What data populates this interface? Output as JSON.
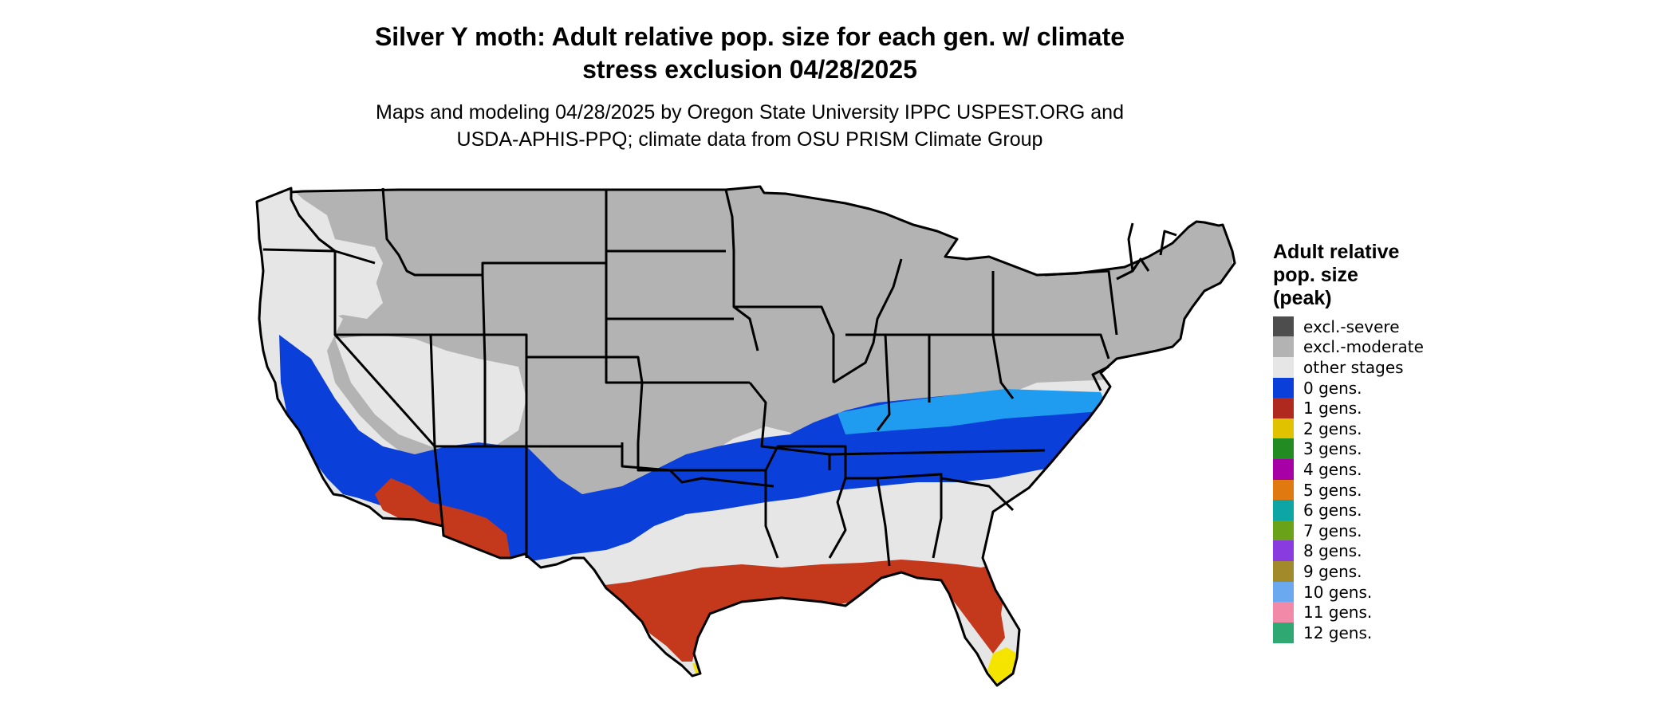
{
  "title": {
    "line1": "Silver Y moth: Adult relative pop. size for each gen. w/ climate",
    "line2": "stress exclusion 04/28/2025"
  },
  "subtitle": {
    "line1": "Maps and modeling 04/28/2025 by Oregon State University IPPC USPEST.ORG and",
    "line2": "USDA-APHIS-PPQ; climate data from OSU PRISM Climate Group"
  },
  "map": {
    "region": "Contiguous United States",
    "colors": {
      "excluded_moderate": "#b3b3b3",
      "other_stages": "#e6e6e6",
      "gen0": "#0a3fd9",
      "gen0_light": "#1f9cf0",
      "gen1": "#c4381c",
      "gen2": "#f5e400",
      "state_borders": "#000000"
    }
  },
  "legend": {
    "title_line1": "Adult relative",
    "title_line2": "pop. size",
    "title_line3": "(peak)",
    "items": [
      {
        "label": "excl.-severe",
        "color": "#4d4d4d",
        "icon": "legend-swatch"
      },
      {
        "label": "excl.-moderate",
        "color": "#b3b3b3",
        "icon": "legend-swatch"
      },
      {
        "label": "other stages",
        "color": "#e6e6e6",
        "icon": "legend-swatch"
      },
      {
        "label": "0 gens.",
        "color": "#0a3fd9",
        "icon": "legend-swatch"
      },
      {
        "label": "1 gens.",
        "color": "#b0291e",
        "icon": "legend-swatch"
      },
      {
        "label": "2 gens.",
        "color": "#e0c200",
        "icon": "legend-swatch"
      },
      {
        "label": "3 gens.",
        "color": "#228b22",
        "icon": "legend-swatch"
      },
      {
        "label": "4 gens.",
        "color": "#a600a6",
        "icon": "legend-swatch"
      },
      {
        "label": "5 gens.",
        "color": "#e07a10",
        "icon": "legend-swatch"
      },
      {
        "label": "6 gens.",
        "color": "#0ea5a5",
        "icon": "legend-swatch"
      },
      {
        "label": "7 gens.",
        "color": "#6aa31a",
        "icon": "legend-swatch"
      },
      {
        "label": "8 gens.",
        "color": "#8a3be0",
        "icon": "legend-swatch"
      },
      {
        "label": "9 gens.",
        "color": "#a08a2a",
        "icon": "legend-swatch"
      },
      {
        "label": "10 gens.",
        "color": "#6aa8f0",
        "icon": "legend-swatch"
      },
      {
        "label": "11 gens.",
        "color": "#f08aa8",
        "icon": "legend-swatch"
      },
      {
        "label": "12 gens.",
        "color": "#30a872",
        "icon": "legend-swatch"
      }
    ]
  }
}
